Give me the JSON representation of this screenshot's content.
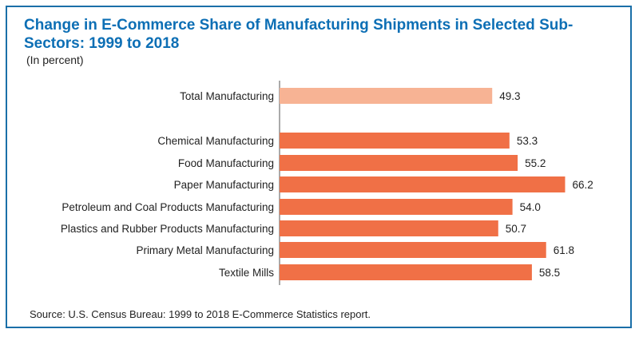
{
  "title": "Change in E-Commerce Share of Manufacturing Shipments in Selected Sub-Sectors: 1999 to 2018",
  "subtitle": "(In percent)",
  "source": "Source: U.S. Census Bureau: 1999 to 2018 E-Commerce Statistics report.",
  "colors": {
    "title": "#0d6fb5",
    "border": "#1a6fa8",
    "total_bar": "#f7b394",
    "subsector_bar": "#f07046",
    "axis": "#555555"
  },
  "chart_data": {
    "type": "bar",
    "orientation": "horizontal",
    "title": "Change in E-Commerce Share of Manufacturing Shipments in Selected Sub-Sectors: 1999 to 2018",
    "subtitle": "(In percent)",
    "categories": [
      "Total Manufacturing",
      "Chemical Manufacturing",
      "Food Manufacturing",
      "Paper Manufacturing",
      "Petroleum and Coal Products Manufacturing",
      "Plastics and Rubber Products Manufacturing",
      "Primary Metal Manufacturing",
      "Textile Mills"
    ],
    "values": [
      49.3,
      53.3,
      55.2,
      66.2,
      54.0,
      50.7,
      61.8,
      58.5
    ],
    "value_labels": [
      "49.3",
      "53.3",
      "55.2",
      "66.2",
      "54.0",
      "50.7",
      "61.8",
      "58.5"
    ],
    "highlight": [
      "total",
      "subsector",
      "subsector",
      "subsector",
      "subsector",
      "subsector",
      "subsector",
      "subsector"
    ],
    "xlim": [
      0,
      70
    ],
    "grid": false,
    "legend": "none"
  }
}
